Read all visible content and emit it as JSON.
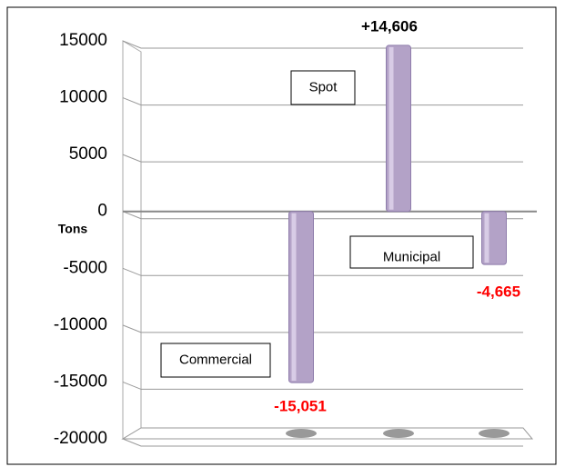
{
  "chart_data": {
    "type": "bar",
    "categories": [
      "Commercial",
      "Spot",
      "Municipal"
    ],
    "values": [
      -15051,
      14606,
      -4665
    ],
    "value_labels": [
      "-15,051",
      "+14,606",
      "-4,665"
    ],
    "value_label_colors": [
      "#ff0000",
      "#000000",
      "#ff0000"
    ],
    "y_label": "Tons",
    "color": "#b3a2c7",
    "ylim": [
      -20000,
      15000
    ],
    "yticks": [
      -20000,
      -15000,
      -10000,
      -5000,
      0,
      5000,
      10000,
      15000
    ],
    "grid": true
  }
}
